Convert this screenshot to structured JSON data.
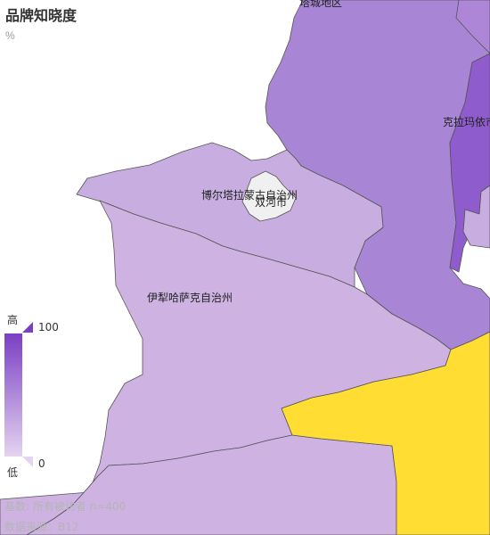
{
  "title": "品牌知晓度",
  "unit": "%",
  "legend": {
    "high_label": "高",
    "low_label": "低",
    "max_value": "100",
    "min_value": "0",
    "color_high": "#7b3fc4",
    "color_low": "#e4d4f0"
  },
  "regions": [
    {
      "key": "tacheng",
      "name": "塔城地区",
      "fill": "#a985d6"
    },
    {
      "key": "kelamayi",
      "name": "克拉玛依市",
      "fill": "#8f5ccd"
    },
    {
      "key": "boertala",
      "name": "博尔塔拉蒙古自治州",
      "fill": "#c8aee0"
    },
    {
      "key": "shuanghe",
      "name": "双河市",
      "fill": "#f0f0f0"
    },
    {
      "key": "yili",
      "name": "伊犁哈萨克自治州",
      "fill": "#cdb2e2"
    },
    {
      "key": "south",
      "name": "",
      "fill": "#ffdd33"
    }
  ],
  "footnotes": {
    "base": "基数: 所有被访者 n=400",
    "source": "数据来源：B12"
  }
}
